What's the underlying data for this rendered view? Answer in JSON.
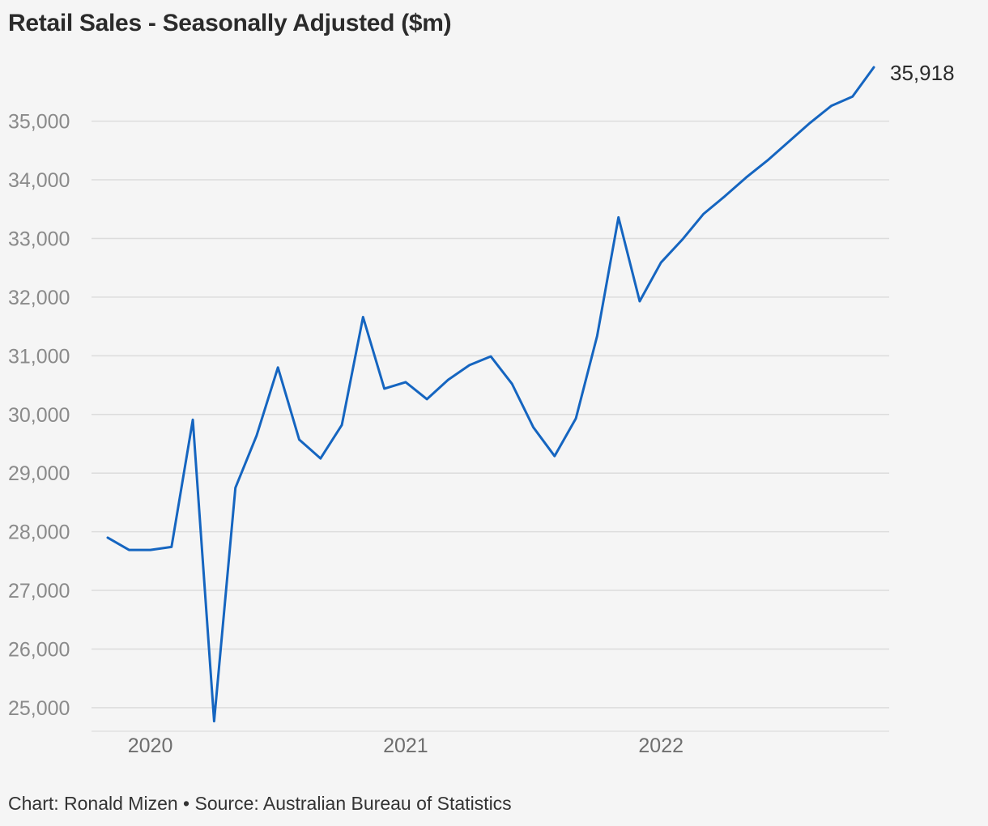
{
  "chart_data": {
    "type": "line",
    "title": "Retail Sales - Seasonally Adjusted ($m)",
    "xlabel": "",
    "ylabel": "",
    "ylim": [
      24750,
      35920
    ],
    "yticks": [
      25000,
      26000,
      27000,
      28000,
      29000,
      30000,
      31000,
      32000,
      33000,
      34000,
      35000
    ],
    "ytick_labels": [
      "25,000",
      "26,000",
      "27,000",
      "28,000",
      "29,000",
      "30,000",
      "31,000",
      "32,000",
      "33,000",
      "34,000",
      "35,000"
    ],
    "xticks": [
      {
        "label": "2020",
        "x": "2020-01"
      },
      {
        "label": "2021",
        "x": "2021-01"
      },
      {
        "label": "2022",
        "x": "2022-01"
      }
    ],
    "grid": true,
    "line_color": "#1565c0",
    "series": [
      {
        "x": [
          "2019-11",
          "2019-12",
          "2020-01",
          "2020-02",
          "2020-03",
          "2020-04",
          "2020-05",
          "2020-06",
          "2020-07",
          "2020-08",
          "2020-09",
          "2020-10",
          "2020-11",
          "2020-12",
          "2021-01",
          "2021-02",
          "2021-03",
          "2021-04",
          "2021-05",
          "2021-06",
          "2021-07",
          "2021-08",
          "2021-09",
          "2021-10",
          "2021-11",
          "2021-12",
          "2022-01",
          "2022-02",
          "2022-03",
          "2022-04",
          "2022-05",
          "2022-06",
          "2022-07",
          "2022-08",
          "2022-09",
          "2022-10",
          "2022-11"
        ],
        "values": [
          27900,
          27690,
          27690,
          27740,
          29910,
          24770,
          28750,
          29640,
          30800,
          29570,
          29250,
          29820,
          31660,
          30440,
          30550,
          30260,
          30590,
          30840,
          30990,
          30520,
          29780,
          29290,
          29930,
          31340,
          33360,
          31930,
          32590,
          32980,
          33420,
          33720,
          34040,
          34330,
          34650,
          34970,
          35260,
          35420,
          35918
        ]
      }
    ],
    "end_label": "35,918",
    "footer": "Chart: Ronald Mizen • Source: Australian Bureau of Statistics"
  }
}
